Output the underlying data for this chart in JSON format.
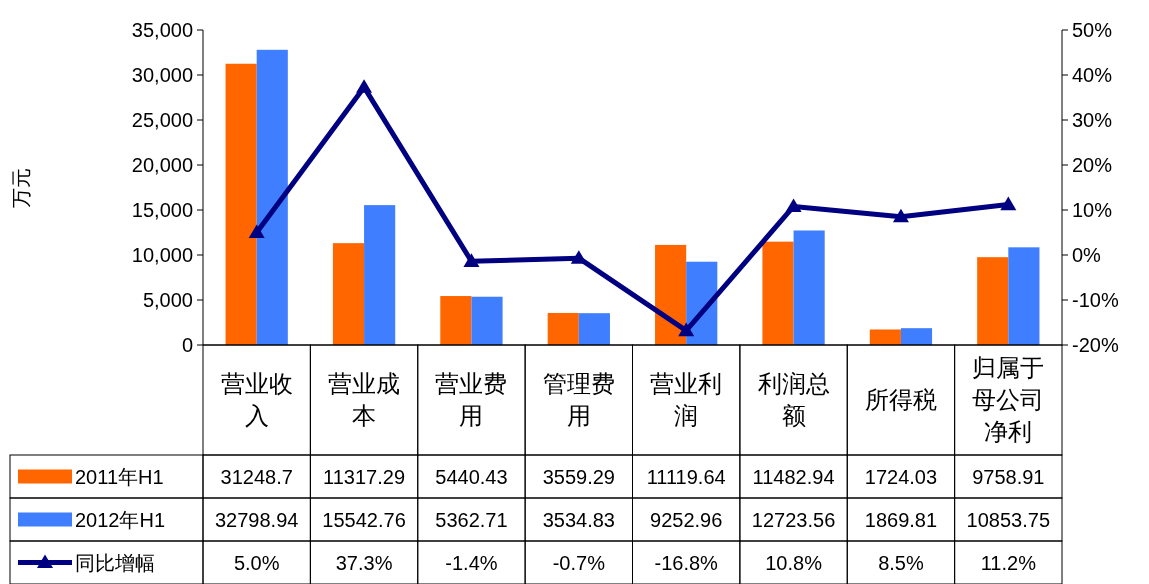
{
  "chart_data": {
    "type": "bar",
    "categories": [
      "营业收入",
      "营业成本",
      "营业费用",
      "管理费用",
      "营业利润",
      "利润总额",
      "所得税",
      "归属于母公司净利"
    ],
    "ylabel": "万元",
    "ylim": [
      0,
      35000
    ],
    "yticks": [
      0,
      {
        "value": 5000,
        "label": "5,000"
      },
      {
        "value": 10000,
        "label": "10,000"
      },
      {
        "value": 15000,
        "label": "15,000"
      },
      {
        "value": 20000,
        "label": "20,000"
      },
      {
        "value": 25000,
        "label": "25,000"
      },
      {
        "value": 30000,
        "label": "30,000"
      },
      {
        "value": 35000,
        "label": "35,000"
      }
    ],
    "y2lim": [
      -20,
      50
    ],
    "y2ticks": [
      {
        "value": -20,
        "label": "-20%"
      },
      {
        "value": -10,
        "label": "-10%"
      },
      {
        "value": 0,
        "label": "0%"
      },
      {
        "value": 10,
        "label": "10%"
      },
      {
        "value": 20,
        "label": "20%"
      },
      {
        "value": 30,
        "label": "30%"
      },
      {
        "value": 40,
        "label": "40%"
      },
      {
        "value": 50,
        "label": "50%"
      }
    ],
    "legend": "bottom",
    "marker": "triangle",
    "series": [
      {
        "name": "2011年H1",
        "color": "#ff6600",
        "values": [
          31248.7,
          11317.29,
          5440.43,
          3559.29,
          11119.64,
          11482.94,
          1724.03,
          9758.91
        ],
        "value_labels": [
          "31248.7",
          "11317.29",
          "5440.43",
          "3559.29",
          "11119.64",
          "11482.94",
          "1724.03",
          "9758.91"
        ]
      },
      {
        "name": "2012年H1",
        "color": "#3f7fff",
        "values": [
          32798.94,
          15542.76,
          5362.71,
          3534.83,
          9252.96,
          12723.56,
          1869.81,
          10853.75
        ],
        "value_labels": [
          "32798.94",
          "15542.76",
          "5362.71",
          "3534.83",
          "9252.96",
          "12723.56",
          "1869.81",
          "10853.75"
        ]
      },
      {
        "name": "同比增幅",
        "type": "line",
        "axis": "y2",
        "color": "#000080",
        "values": [
          5.0,
          37.3,
          -1.4,
          -0.7,
          -16.8,
          10.8,
          8.5,
          11.2
        ],
        "value_labels": [
          "5.0%",
          "37.3%",
          "-1.4%",
          "-0.7%",
          "-16.8%",
          "10.8%",
          "8.5%",
          "11.2%"
        ]
      }
    ]
  }
}
